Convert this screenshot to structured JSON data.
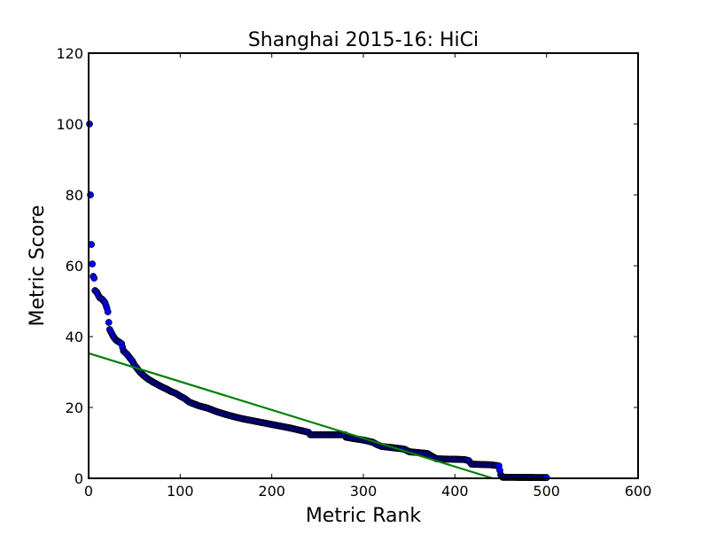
{
  "chart_data": {
    "type": "scatter",
    "title": "Shanghai 2015-16: HiCi",
    "xlabel": "Metric Rank",
    "ylabel": "Metric Score",
    "xlim": [
      0,
      600
    ],
    "ylim": [
      0,
      120
    ],
    "xticks": [
      0,
      100,
      200,
      300,
      400,
      500,
      600
    ],
    "yticks": [
      0,
      20,
      40,
      60,
      80,
      100,
      120
    ],
    "grid": false,
    "colors": {
      "points": "#0000ff",
      "point_edge": "#000000",
      "fit": "#008000",
      "axes": "#000000"
    },
    "series": [
      {
        "name": "Metric Score",
        "kind": "scatter",
        "curve_knots": [
          [
            1,
            100
          ],
          [
            2,
            80
          ],
          [
            3,
            66
          ],
          [
            4,
            60.5
          ],
          [
            5,
            57
          ],
          [
            6,
            56.5
          ],
          [
            7,
            53
          ],
          [
            9,
            52.5
          ],
          [
            10,
            52
          ],
          [
            12,
            51
          ],
          [
            15,
            50.5
          ],
          [
            18,
            49.5
          ],
          [
            20,
            48
          ],
          [
            21,
            47
          ],
          [
            22,
            44
          ],
          [
            23,
            42
          ],
          [
            25,
            41
          ],
          [
            27,
            40
          ],
          [
            30,
            39
          ],
          [
            33,
            38.5
          ],
          [
            36,
            38
          ],
          [
            38,
            36
          ],
          [
            42,
            35
          ],
          [
            45,
            34
          ],
          [
            48,
            33
          ],
          [
            50,
            32
          ],
          [
            53,
            31
          ],
          [
            56,
            30
          ],
          [
            60,
            29
          ],
          [
            65,
            28
          ],
          [
            70,
            27.2
          ],
          [
            75,
            26.5
          ],
          [
            80,
            25.8
          ],
          [
            85,
            25.2
          ],
          [
            90,
            24.5
          ],
          [
            95,
            24
          ],
          [
            100,
            23.2
          ],
          [
            105,
            22.5
          ],
          [
            110,
            21.5
          ],
          [
            115,
            21
          ],
          [
            120,
            20.5
          ],
          [
            130,
            19.8
          ],
          [
            140,
            18.8
          ],
          [
            150,
            18
          ],
          [
            160,
            17.3
          ],
          [
            170,
            16.7
          ],
          [
            180,
            16.2
          ],
          [
            190,
            15.7
          ],
          [
            200,
            15.2
          ],
          [
            210,
            14.7
          ],
          [
            220,
            14.2
          ],
          [
            230,
            13.6
          ],
          [
            240,
            13
          ],
          [
            242,
            12.3
          ],
          [
            280,
            12.3
          ],
          [
            281,
            11.6
          ],
          [
            290,
            11.2
          ],
          [
            300,
            10.8
          ],
          [
            310,
            10.2
          ],
          [
            315,
            9.5
          ],
          [
            320,
            9
          ],
          [
            330,
            8.7
          ],
          [
            340,
            8.4
          ],
          [
            345,
            8.2
          ],
          [
            350,
            7.5
          ],
          [
            370,
            7
          ],
          [
            375,
            6.2
          ],
          [
            380,
            5.5
          ],
          [
            410,
            5.3
          ],
          [
            415,
            5
          ],
          [
            418,
            4
          ],
          [
            440,
            3.8
          ],
          [
            448,
            3.5
          ],
          [
            450,
            1
          ],
          [
            452,
            0.3
          ],
          [
            500,
            0.2
          ]
        ]
      },
      {
        "name": "Linear fit",
        "kind": "line",
        "x": [
          0,
          600
        ],
        "y": [
          35.3,
          -12.7
        ]
      }
    ]
  }
}
